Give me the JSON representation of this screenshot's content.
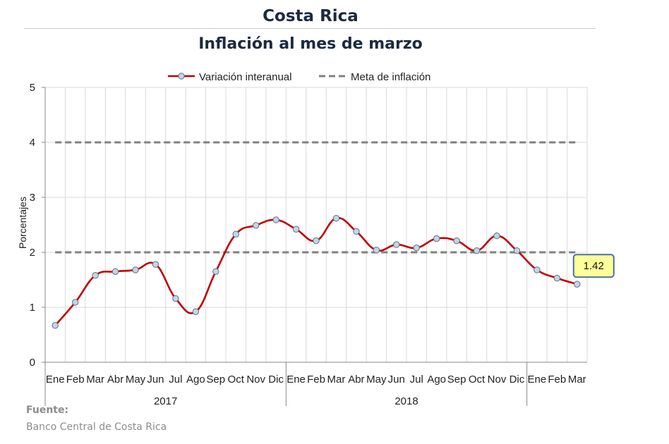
{
  "header": {
    "title": "Costa Rica",
    "subtitle": "Inflación al mes de marzo"
  },
  "source": {
    "label": "Fuente:",
    "text": "Banco Central de Costa Rica"
  },
  "colors": {
    "series_line": "#c00000",
    "marker_fill": "#c6d4e6",
    "marker_stroke": "#5a6f8c",
    "target_line": "#808080",
    "grid": "#d9d9d9",
    "callout_fill": "#ffff99",
    "callout_border": "#4a6fa5"
  },
  "chart_data": {
    "type": "line",
    "title": "Inflación al mes de marzo",
    "ylabel": "Porcentajes",
    "ylim": [
      0,
      5
    ],
    "yticks": [
      0,
      1,
      2,
      3,
      4,
      5
    ],
    "grid": true,
    "legend_position": "top",
    "categories": [
      "Ene",
      "Feb",
      "Mar",
      "Abr",
      "May",
      "Jun",
      "Jul",
      "Ago",
      "Sep",
      "Oct",
      "Nov",
      "Dic",
      "Ene",
      "Feb",
      "Mar",
      "Abr",
      "May",
      "Jun",
      "Jul",
      "Ago",
      "Sep",
      "Oct",
      "Nov",
      "Dic",
      "Ene",
      "Feb",
      "Mar"
    ],
    "groups": [
      {
        "label": "2017",
        "span": 12
      },
      {
        "label": "2018",
        "span": 12
      },
      {
        "label": "",
        "span": 3
      }
    ],
    "series": [
      {
        "name": "Variación interanual",
        "values": [
          0.67,
          1.09,
          1.58,
          1.65,
          1.68,
          1.78,
          1.16,
          0.92,
          1.65,
          2.33,
          2.49,
          2.59,
          2.42,
          2.21,
          2.62,
          2.38,
          2.04,
          2.14,
          2.08,
          2.25,
          2.21,
          2.03,
          2.3,
          2.03,
          1.68,
          1.53,
          1.42
        ]
      },
      {
        "name": "Meta de inflación",
        "style": "dashed",
        "band": [
          2,
          4
        ]
      }
    ],
    "annotation": {
      "label": "1.42",
      "index": 26
    }
  }
}
